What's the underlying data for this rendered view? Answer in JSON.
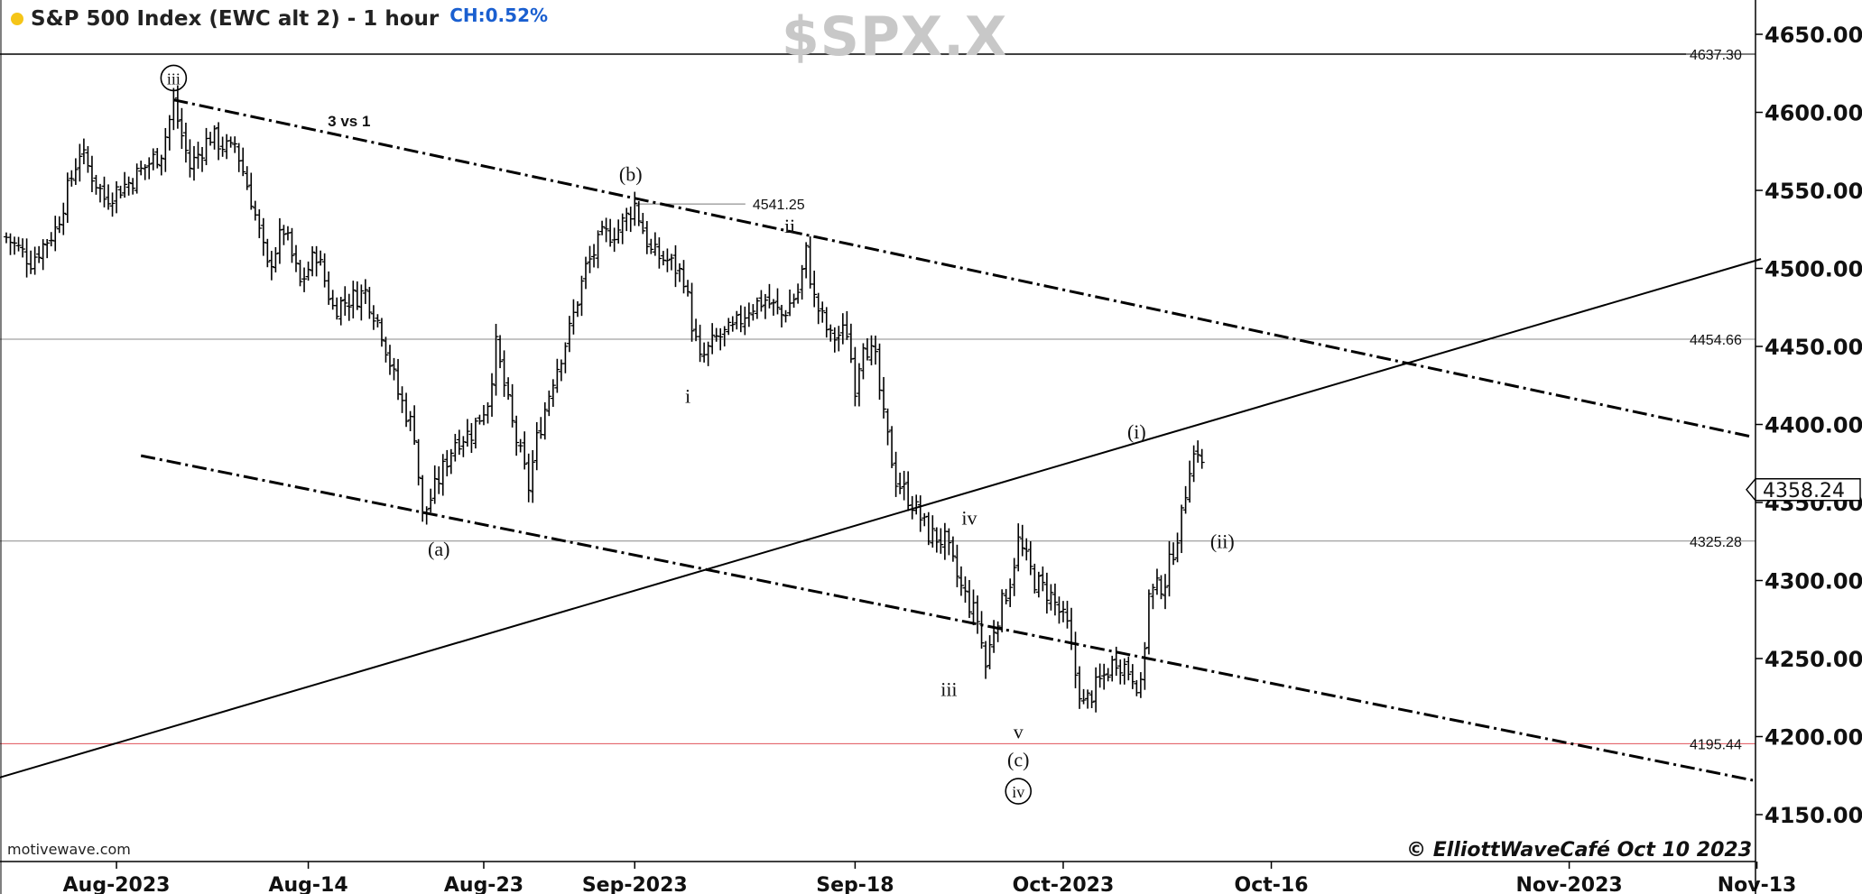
{
  "header": {
    "title": "S&P 500 Index (EWC alt 2) - 1 hour",
    "change": "CH:0.52%",
    "symbol": "$SPX.X",
    "source": "motivewave.com",
    "copyright": "© ElliottWaveCafé Oct 10 2023",
    "status_dot_color": "#f5c518"
  },
  "chart_data": {
    "type": "bar",
    "subtype": "ohlc-price-bars",
    "yaxis": {
      "position": "right",
      "range": [
        4125,
        4690
      ],
      "ticks": [
        4150,
        4200,
        4250,
        4300,
        4350,
        4400,
        4450,
        4500,
        4550,
        4600,
        4650
      ],
      "tick_labels": [
        "4150.00",
        "4200.00",
        "4250.00",
        "4300.00",
        "4350.00",
        "4400.00",
        "4450.00",
        "4500.00",
        "4550.00",
        "4600.00",
        "4650.00"
      ]
    },
    "xaxis": {
      "ticks": [
        {
          "label": "Aug-2023",
          "bar": 27
        },
        {
          "label": "Aug-14",
          "bar": 74
        },
        {
          "label": "Aug-23",
          "bar": 117
        },
        {
          "label": "Sep-2023",
          "bar": 154
        },
        {
          "label": "Sep-18",
          "bar": 208
        },
        {
          "label": "Oct-2023",
          "bar": 259
        },
        {
          "label": "Oct-16",
          "bar": 310
        },
        {
          "label": "Nov-2023",
          "bar": 383
        },
        {
          "label": "Nov-13",
          "bar": 429
        }
      ]
    },
    "x_bar_range": [
      -65,
      430
    ],
    "current_price": "4358.24",
    "current_price_value": 4358.24,
    "path_nodes": [
      {
        "b": 0,
        "p": 4520
      },
      {
        "b": 6,
        "p": 4505
      },
      {
        "b": 12,
        "p": 4525
      },
      {
        "b": 18,
        "p": 4575
      },
      {
        "b": 24,
        "p": 4545
      },
      {
        "b": 30,
        "p": 4555
      },
      {
        "b": 38,
        "p": 4575
      },
      {
        "b": 41,
        "p": 4605
      },
      {
        "b": 45,
        "p": 4565
      },
      {
        "b": 50,
        "p": 4585
      },
      {
        "b": 55,
        "p": 4575
      },
      {
        "b": 56,
        "p": 4580
      },
      {
        "b": 60,
        "p": 4545
      },
      {
        "b": 64,
        "p": 4500
      },
      {
        "b": 68,
        "p": 4525
      },
      {
        "b": 72,
        "p": 4490
      },
      {
        "b": 76,
        "p": 4510
      },
      {
        "b": 80,
        "p": 4475
      },
      {
        "b": 84,
        "p": 4480
      },
      {
        "b": 88,
        "p": 4485
      },
      {
        "b": 92,
        "p": 4460
      },
      {
        "b": 96,
        "p": 4420
      },
      {
        "b": 100,
        "p": 4395
      },
      {
        "b": 102,
        "p": 4340
      },
      {
        "b": 106,
        "p": 4365
      },
      {
        "b": 110,
        "p": 4390
      },
      {
        "b": 114,
        "p": 4395
      },
      {
        "b": 118,
        "p": 4415
      },
      {
        "b": 120,
        "p": 4450
      },
      {
        "b": 124,
        "p": 4400
      },
      {
        "b": 128,
        "p": 4360
      },
      {
        "b": 130,
        "p": 4390
      },
      {
        "b": 134,
        "p": 4430
      },
      {
        "b": 138,
        "p": 4460
      },
      {
        "b": 142,
        "p": 4500
      },
      {
        "b": 146,
        "p": 4520
      },
      {
        "b": 150,
        "p": 4525
      },
      {
        "b": 154,
        "p": 4541
      },
      {
        "b": 158,
        "p": 4510
      },
      {
        "b": 162,
        "p": 4505
      },
      {
        "b": 166,
        "p": 4495
      },
      {
        "b": 168,
        "p": 4465
      },
      {
        "b": 170,
        "p": 4440
      },
      {
        "b": 174,
        "p": 4455
      },
      {
        "b": 178,
        "p": 4460
      },
      {
        "b": 182,
        "p": 4475
      },
      {
        "b": 186,
        "p": 4480
      },
      {
        "b": 190,
        "p": 4470
      },
      {
        "b": 194,
        "p": 4485
      },
      {
        "b": 196,
        "p": 4510
      },
      {
        "b": 198,
        "p": 4480
      },
      {
        "b": 202,
        "p": 4455
      },
      {
        "b": 206,
        "p": 4460
      },
      {
        "b": 208,
        "p": 4425
      },
      {
        "b": 210,
        "p": 4455
      },
      {
        "b": 213,
        "p": 4440
      },
      {
        "b": 215,
        "p": 4403
      },
      {
        "b": 218,
        "p": 4365
      },
      {
        "b": 222,
        "p": 4350
      },
      {
        "b": 226,
        "p": 4330
      },
      {
        "b": 230,
        "p": 4325
      },
      {
        "b": 234,
        "p": 4295
      },
      {
        "b": 238,
        "p": 4275
      },
      {
        "b": 240,
        "p": 4245
      },
      {
        "b": 242,
        "p": 4270
      },
      {
        "b": 246,
        "p": 4300
      },
      {
        "b": 248,
        "p": 4325
      },
      {
        "b": 252,
        "p": 4300
      },
      {
        "b": 256,
        "p": 4290
      },
      {
        "b": 260,
        "p": 4270
      },
      {
        "b": 262,
        "p": 4240
      },
      {
        "b": 264,
        "p": 4220
      },
      {
        "b": 268,
        "p": 4235
      },
      {
        "b": 272,
        "p": 4250
      },
      {
        "b": 276,
        "p": 4240
      },
      {
        "b": 278,
        "p": 4230
      },
      {
        "b": 280,
        "p": 4290
      },
      {
        "b": 284,
        "p": 4300
      },
      {
        "b": 288,
        "p": 4340
      },
      {
        "b": 290,
        "p": 4375
      },
      {
        "b": 292,
        "p": 4385
      },
      {
        "b": 294,
        "p": 4360
      }
    ],
    "horizontal_levels": [
      {
        "value": 4637.3,
        "label": "4637.30",
        "color": "#000000"
      },
      {
        "value": 4454.66,
        "label": "4454.66",
        "color": "#888888"
      },
      {
        "value": 4325.28,
        "label": "4325.28",
        "color": "#888888"
      },
      {
        "value": 4195.44,
        "label": "4195.44",
        "color": "#e0525a"
      }
    ],
    "short_level": {
      "b1": 154,
      "b2": 182,
      "value": 4541.25,
      "label": "4541.25"
    },
    "trendlines": [
      {
        "name": "upper-channel",
        "style": "dashdot",
        "b1": 41,
        "p1": 4608,
        "b2": 428,
        "p2": 4392
      },
      {
        "name": "lower-channel",
        "style": "dashdot",
        "b1": 33,
        "p1": 4380,
        "b2": 428,
        "p2": 4172
      },
      {
        "name": "rising-trendline",
        "style": "solid",
        "b1": -65,
        "p1": 4125,
        "b2": 430,
        "p2": 4506
      }
    ],
    "wave_labels": [
      {
        "text": "iii",
        "circled": true,
        "b": 41,
        "p": 4622
      },
      {
        "text": "3 vs 1",
        "bold": true,
        "b": 84,
        "p": 4595
      },
      {
        "text": "(b)",
        "b": 153,
        "p": 4560
      },
      {
        "text": "ii",
        "b": 192,
        "p": 4527
      },
      {
        "text": "i",
        "b": 167,
        "p": 4418
      },
      {
        "text": "(a)",
        "b": 106,
        "p": 4320
      },
      {
        "text": "iv",
        "b": 236,
        "p": 4340
      },
      {
        "text": "iii",
        "b": 231,
        "p": 4230
      },
      {
        "text": "v",
        "b": 248,
        "p": 4203
      },
      {
        "text": "(c)",
        "b": 248,
        "p": 4185
      },
      {
        "text": "iv",
        "circled": true,
        "b": 248,
        "p": 4165
      },
      {
        "text": "(i)",
        "b": 277,
        "p": 4395
      },
      {
        "text": "(ii)",
        "b": 298,
        "p": 4325
      }
    ]
  }
}
